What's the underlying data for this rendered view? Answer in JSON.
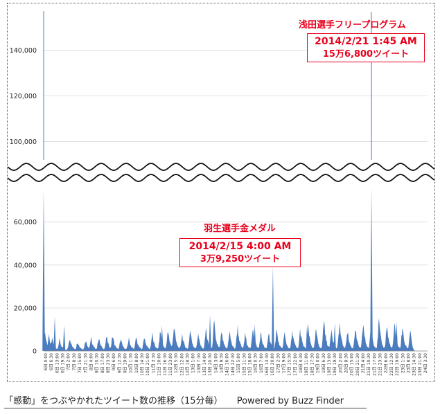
{
  "chart_data": {
    "type": "area",
    "title": "「感動」をつぶやかれたツイート数の推移（15分毎）",
    "credit": "Powered by Buzz Finder",
    "axis_break": true,
    "upper_ylim": [
      92000,
      158000
    ],
    "lower_ylim": [
      0,
      76000
    ],
    "y_ticks_upper": [
      "100,000",
      "120,000",
      "140,000"
    ],
    "y_ticks_upper_values": [
      100000,
      120000,
      140000
    ],
    "y_ticks_lower": [
      "0",
      "20,000",
      "40,000",
      "60,000"
    ],
    "y_ticks_lower_values": [
      0,
      20000,
      40000,
      60000
    ],
    "x_ticks": [
      "6日 0:00",
      "6日 6:30",
      "6日 13:00",
      "6日 19:30",
      "7日 2:00",
      "7日 8:30",
      "7日 15:00",
      "7日 21:30",
      "8日 4:00",
      "8日 10:30",
      "8日 17:00",
      "8日 23:30",
      "9日 6:00",
      "9日 12:30",
      "9日 19:00",
      "10日 1:30",
      "10日 8:00",
      "10日 14:30",
      "10日 21:00",
      "11日 3:30",
      "11日 10:00",
      "11日 16:30",
      "11日 23:00",
      "12日 5:30",
      "12日 12:00",
      "12日 18:30",
      "13日 1:00",
      "13日 7:30",
      "13日 14:00",
      "13日 20:30",
      "14日 3:00",
      "14日 9:30",
      "14日 16:00",
      "14日 22:30",
      "15日 5:00",
      "15日 11:30",
      "15日 18:00",
      "16日 0:30",
      "16日 7:00",
      "16日 13:30",
      "16日 20:00",
      "17日 2:30",
      "17日 9:00",
      "17日 15:30",
      "17日 22:00",
      "18日 4:30",
      "18日 11:00",
      "18日 17:30",
      "19日 0:00",
      "19日 6:30",
      "19日 13:00",
      "19日 19:30",
      "20日 2:00",
      "20日 8:30",
      "20日 15:00",
      "20日 21:30",
      "21日 4:00",
      "21日 10:30",
      "21日 17:00",
      "21日 23:30",
      "22日 6:00",
      "22日 12:30",
      "22日 19:00",
      "23日 1:30",
      "23日 8:00",
      "23日 14:30",
      "23日 21:00",
      "24日 3:30"
    ],
    "series": [
      {
        "name": "ツイート数",
        "color": "#4a7cbf"
      }
    ],
    "baseline_peaks": [
      {
        "x": 0.3,
        "v": 12000
      },
      {
        "x": 2.5,
        "v": 6000
      },
      {
        "x": 4.1,
        "v": 5000
      },
      {
        "x": 7.5,
        "v": 4500
      },
      {
        "x": 12.3,
        "v": 5500
      },
      {
        "x": 16.0,
        "v": 3800
      },
      {
        "x": 19.8,
        "v": 4500
      },
      {
        "x": 22.3,
        "v": 5000
      },
      {
        "x": 25.9,
        "v": 5500
      },
      {
        "x": 29.6,
        "v": 6000
      },
      {
        "x": 32.4,
        "v": 6500
      },
      {
        "x": 36.2,
        "v": 4800
      },
      {
        "x": 40.0,
        "v": 5000
      },
      {
        "x": 43.5,
        "v": 5500
      },
      {
        "x": 47.3,
        "v": 6000
      },
      {
        "x": 51.0,
        "v": 7000
      },
      {
        "x": 54.8,
        "v": 8500
      },
      {
        "x": 58.4,
        "v": 9000
      },
      {
        "x": 61.2,
        "v": 11000
      },
      {
        "x": 65.0,
        "v": 7000
      },
      {
        "x": 68.8,
        "v": 9000
      },
      {
        "x": 72.5,
        "v": 7000
      },
      {
        "x": 76.2,
        "v": 9500
      },
      {
        "x": 80.0,
        "v": 12000
      },
      {
        "x": 83.5,
        "v": 8000
      },
      {
        "x": 87.2,
        "v": 8500
      },
      {
        "x": 91.0,
        "v": 10500
      },
      {
        "x": 94.6,
        "v": 7000
      },
      {
        "x": 98.2,
        "v": 11000
      },
      {
        "x": 101.9,
        "v": 7500
      },
      {
        "x": 105.6,
        "v": 8000
      },
      {
        "x": 109.3,
        "v": 9000
      },
      {
        "x": 113.0,
        "v": 7500
      },
      {
        "x": 116.7,
        "v": 8500
      },
      {
        "x": 120.4,
        "v": 9000
      },
      {
        "x": 124.1,
        "v": 10500
      },
      {
        "x": 127.8,
        "v": 9000
      },
      {
        "x": 131.5,
        "v": 14000
      },
      {
        "x": 135.0,
        "v": 10000
      },
      {
        "x": 138.8,
        "v": 12000
      },
      {
        "x": 142.5,
        "v": 9000
      },
      {
        "x": 146.2,
        "v": 10000
      },
      {
        "x": 149.9,
        "v": 12000
      },
      {
        "x": 153.6,
        "v": 10500
      },
      {
        "x": 157.3,
        "v": 13000
      },
      {
        "x": 161.0,
        "v": 11000
      },
      {
        "x": 164.6,
        "v": 11000
      },
      {
        "x": 168.3,
        "v": 10000
      },
      {
        "x": 172.0,
        "v": 9500
      }
    ],
    "spikes": [
      {
        "x": 0.0,
        "v": 157000
      },
      {
        "x": 5.2,
        "v": 16000
      },
      {
        "x": 9.6,
        "v": 12000
      },
      {
        "x": 55.5,
        "v": 12000
      },
      {
        "x": 78.0,
        "v": 17000
      },
      {
        "x": 99.0,
        "v": 12500
      },
      {
        "x": 107.5,
        "v": 39250
      },
      {
        "x": 123.5,
        "v": 12000
      },
      {
        "x": 136.5,
        "v": 13000
      },
      {
        "x": 153.5,
        "v": 14000
      },
      {
        "x": 153.7,
        "v": 156800
      },
      {
        "x": 165.5,
        "v": 13500
      }
    ],
    "x_range": [
      0,
      180
    ],
    "annotations": [
      {
        "title": "浅田選手フリープログラム",
        "line1": "2014/2/21 1:45 AM",
        "line2": "15万6,800ツイート"
      },
      {
        "title": "羽生選手金メダル",
        "line1": "2014/2/15 4:00 AM",
        "line2": "3万9,250ツイート"
      }
    ]
  }
}
